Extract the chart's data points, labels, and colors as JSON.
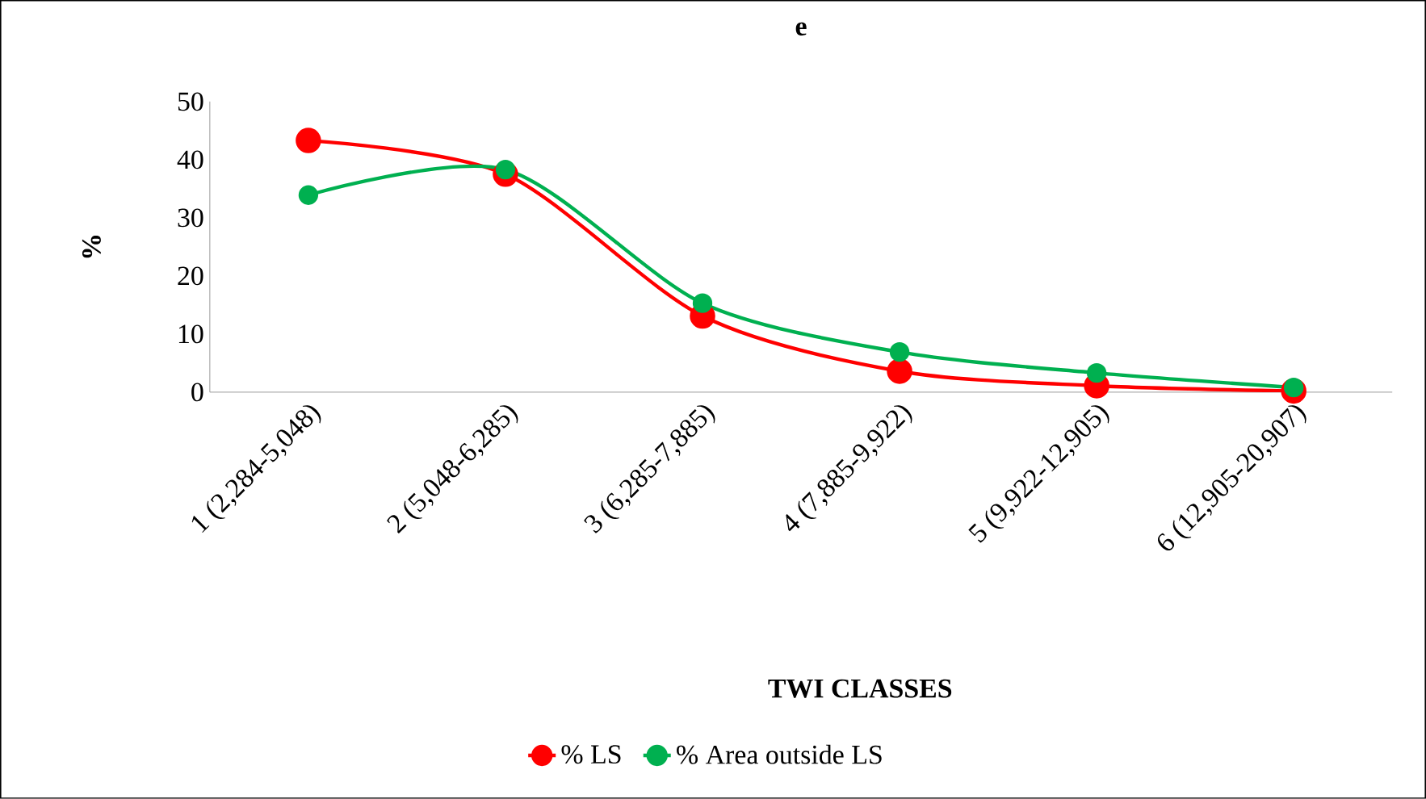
{
  "chart_data": {
    "type": "line",
    "title": "e",
    "xlabel": "TWI CLASSES",
    "ylabel": "%",
    "categories": [
      "1 (2,284-5,048)",
      "2 (5,048-6,285)",
      "3 (6,285-7,885)",
      "4 (7,885-9,922)",
      "5 (9,922-12,905)",
      "6 (12,905-20,907)"
    ],
    "series": [
      {
        "name": "% LS",
        "color": "#ff0000",
        "values": [
          43.3,
          37.5,
          13.1,
          3.6,
          1.1,
          0.2
        ]
      },
      {
        "name": "% Area outside LS",
        "color": "#00b050",
        "values": [
          33.9,
          38.3,
          15.3,
          6.9,
          3.3,
          0.8
        ]
      }
    ],
    "ylim": [
      0,
      50
    ],
    "yticks": [
      0,
      10,
      20,
      30,
      40,
      50
    ],
    "legend": "bottom",
    "marker": "circle"
  }
}
